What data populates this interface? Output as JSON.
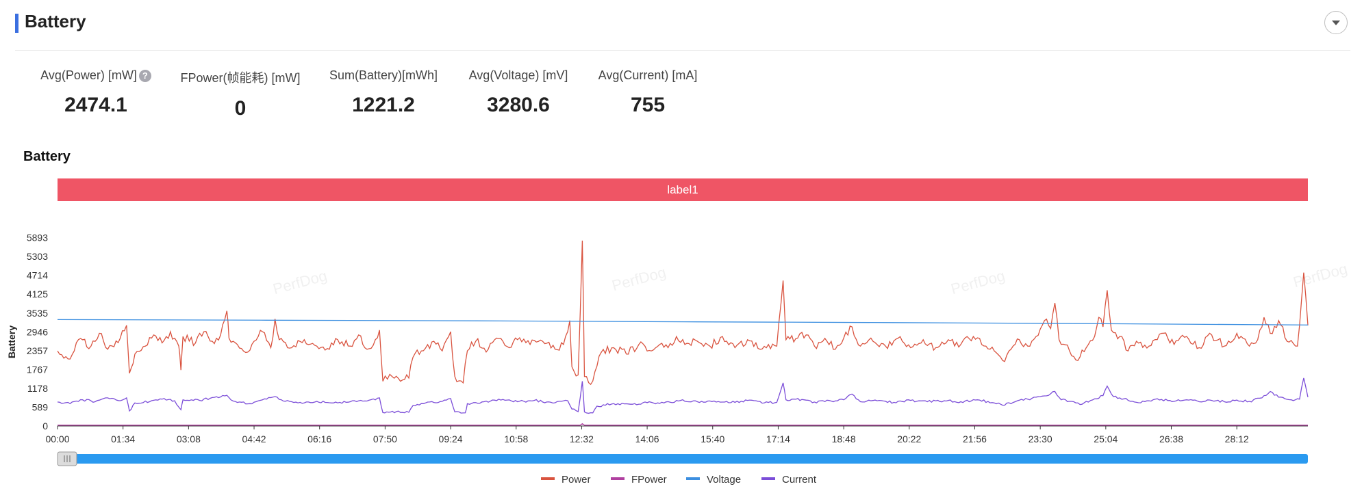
{
  "header": {
    "title": "Battery"
  },
  "stats": [
    {
      "label": "Avg(Power) [mW]",
      "value": "2474.1",
      "help": "?"
    },
    {
      "label": "FPower(帧能耗) [mW]",
      "value": "0"
    },
    {
      "label": "Sum(Battery)[mWh]",
      "value": "1221.2"
    },
    {
      "label": "Avg(Voltage) [mV]",
      "value": "3280.6"
    },
    {
      "label": "Avg(Current) [mA]",
      "value": "755"
    }
  ],
  "watermark": "PerfDog",
  "chart_data": {
    "type": "line",
    "title": "Battery",
    "ylabel": "Battery",
    "label_band": "label1",
    "ylim": [
      0,
      6483
    ],
    "y_ticks": [
      0,
      589,
      1178,
      1767,
      2357,
      2946,
      3535,
      4125,
      4714,
      5303,
      5893
    ],
    "x_ticks": [
      "00:00",
      "01:34",
      "03:08",
      "04:42",
      "06:16",
      "07:50",
      "09:24",
      "10:58",
      "12:32",
      "14:06",
      "15:40",
      "17:14",
      "18:48",
      "20:22",
      "21:56",
      "23:30",
      "25:04",
      "26:38",
      "28:12"
    ],
    "x_minutes_end": 29.9,
    "grid": false,
    "legend_position": "bottom",
    "series": [
      {
        "name": "Power",
        "color": "#d9533f",
        "width": 1.3,
        "points": [
          [
            0,
            2350
          ],
          [
            0.25,
            2100
          ],
          [
            0.5,
            2700
          ],
          [
            0.8,
            2500
          ],
          [
            1.0,
            2900
          ],
          [
            1.2,
            2400
          ],
          [
            1.5,
            2750
          ],
          [
            1.65,
            3150
          ],
          [
            1.72,
            1650
          ],
          [
            1.85,
            2250
          ],
          [
            2.1,
            2500
          ],
          [
            2.3,
            2850
          ],
          [
            2.5,
            2600
          ],
          [
            2.7,
            2950
          ],
          [
            2.9,
            2500
          ],
          [
            2.95,
            1750
          ],
          [
            3.0,
            2800
          ],
          [
            3.3,
            2600
          ],
          [
            3.5,
            2950
          ],
          [
            3.7,
            2650
          ],
          [
            3.9,
            2850
          ],
          [
            4.05,
            3600
          ],
          [
            4.1,
            2750
          ],
          [
            4.3,
            2550
          ],
          [
            4.5,
            2300
          ],
          [
            4.7,
            2650
          ],
          [
            4.9,
            2950
          ],
          [
            5.1,
            2450
          ],
          [
            5.2,
            3350
          ],
          [
            5.3,
            2700
          ],
          [
            5.6,
            2450
          ],
          [
            5.9,
            2700
          ],
          [
            6.2,
            2500
          ],
          [
            6.5,
            2400
          ],
          [
            6.7,
            2700
          ],
          [
            7.0,
            2500
          ],
          [
            7.2,
            2850
          ],
          [
            7.4,
            2400
          ],
          [
            7.6,
            2700
          ],
          [
            7.7,
            3000
          ],
          [
            7.78,
            1400
          ],
          [
            8.0,
            1550
          ],
          [
            8.2,
            1400
          ],
          [
            8.4,
            1500
          ],
          [
            8.5,
            2150
          ],
          [
            8.7,
            2350
          ],
          [
            9.0,
            2650
          ],
          [
            9.2,
            2350
          ],
          [
            9.4,
            2950
          ],
          [
            9.5,
            1550
          ],
          [
            9.7,
            1350
          ],
          [
            9.8,
            2350
          ],
          [
            10.0,
            2650
          ],
          [
            10.3,
            2400
          ],
          [
            10.5,
            2750
          ],
          [
            10.8,
            2450
          ],
          [
            11.0,
            2700
          ],
          [
            11.3,
            2550
          ],
          [
            11.6,
            2650
          ],
          [
            11.9,
            2400
          ],
          [
            12.1,
            2550
          ],
          [
            12.25,
            3300
          ],
          [
            12.3,
            1850
          ],
          [
            12.45,
            1600
          ],
          [
            12.55,
            5800
          ],
          [
            12.6,
            1550
          ],
          [
            12.75,
            1300
          ],
          [
            12.85,
            1700
          ],
          [
            13.0,
            2300
          ],
          [
            13.3,
            2450
          ],
          [
            13.6,
            2250
          ],
          [
            13.9,
            2550
          ],
          [
            14.2,
            2350
          ],
          [
            14.4,
            2550
          ],
          [
            14.6,
            2450
          ],
          [
            14.8,
            2800
          ],
          [
            15.0,
            2550
          ],
          [
            15.3,
            2650
          ],
          [
            15.6,
            2500
          ],
          [
            15.9,
            2800
          ],
          [
            16.2,
            2450
          ],
          [
            16.5,
            2700
          ],
          [
            16.8,
            2400
          ],
          [
            17.0,
            2550
          ],
          [
            17.2,
            2500
          ],
          [
            17.35,
            4550
          ],
          [
            17.42,
            2700
          ],
          [
            17.7,
            2750
          ],
          [
            17.9,
            2850
          ],
          [
            18.1,
            2500
          ],
          [
            18.4,
            2650
          ],
          [
            18.6,
            2400
          ],
          [
            18.8,
            2750
          ],
          [
            19.0,
            3100
          ],
          [
            19.2,
            2500
          ],
          [
            19.5,
            2650
          ],
          [
            19.8,
            2500
          ],
          [
            20.1,
            2750
          ],
          [
            20.4,
            2450
          ],
          [
            20.7,
            2700
          ],
          [
            21.0,
            2450
          ],
          [
            21.3,
            2700
          ],
          [
            21.6,
            2550
          ],
          [
            21.9,
            2800
          ],
          [
            22.2,
            2500
          ],
          [
            22.4,
            2350
          ],
          [
            22.6,
            2050
          ],
          [
            22.8,
            2400
          ],
          [
            23.0,
            2700
          ],
          [
            23.2,
            2500
          ],
          [
            23.4,
            2800
          ],
          [
            23.6,
            3300
          ],
          [
            23.75,
            3050
          ],
          [
            23.85,
            3850
          ],
          [
            23.95,
            2700
          ],
          [
            24.2,
            2350
          ],
          [
            24.4,
            2050
          ],
          [
            24.6,
            2450
          ],
          [
            24.8,
            2800
          ],
          [
            24.9,
            3400
          ],
          [
            25.0,
            3100
          ],
          [
            25.1,
            4250
          ],
          [
            25.2,
            3000
          ],
          [
            25.4,
            2800
          ],
          [
            25.6,
            2350
          ],
          [
            25.8,
            2650
          ],
          [
            26.1,
            2500
          ],
          [
            26.4,
            2900
          ],
          [
            26.7,
            2550
          ],
          [
            27.0,
            2800
          ],
          [
            27.3,
            2450
          ],
          [
            27.6,
            2850
          ],
          [
            27.9,
            2500
          ],
          [
            28.2,
            2900
          ],
          [
            28.5,
            2500
          ],
          [
            28.7,
            2700
          ],
          [
            28.85,
            3400
          ],
          [
            29.0,
            2900
          ],
          [
            29.2,
            3300
          ],
          [
            29.4,
            2650
          ],
          [
            29.65,
            2500
          ],
          [
            29.8,
            4800
          ],
          [
            29.9,
            3150
          ]
        ]
      },
      {
        "name": "FPower",
        "color": "#b040a0",
        "width": 1.3,
        "points": [
          [
            0,
            25
          ],
          [
            12.5,
            25
          ],
          [
            12.55,
            70
          ],
          [
            12.6,
            25
          ],
          [
            29.9,
            25
          ]
        ]
      },
      {
        "name": "Voltage",
        "color": "#3c8fe0",
        "width": 1.3,
        "points": [
          [
            0,
            3330
          ],
          [
            5,
            3310
          ],
          [
            10,
            3290
          ],
          [
            15,
            3260
          ],
          [
            20,
            3235
          ],
          [
            25,
            3200
          ],
          [
            29.9,
            3160
          ]
        ]
      },
      {
        "name": "Current",
        "color": "#7b4dd8",
        "width": 1.3,
        "points": [
          [
            0,
            750
          ],
          [
            0.3,
            700
          ],
          [
            0.6,
            820
          ],
          [
            0.9,
            760
          ],
          [
            1.2,
            880
          ],
          [
            1.5,
            790
          ],
          [
            1.65,
            880
          ],
          [
            1.72,
            470
          ],
          [
            1.85,
            720
          ],
          [
            2.2,
            760
          ],
          [
            2.5,
            840
          ],
          [
            2.8,
            790
          ],
          [
            2.95,
            510
          ],
          [
            3.0,
            820
          ],
          [
            3.4,
            800
          ],
          [
            3.7,
            890
          ],
          [
            4.05,
            960
          ],
          [
            4.2,
            780
          ],
          [
            4.6,
            700
          ],
          [
            4.9,
            820
          ],
          [
            5.2,
            920
          ],
          [
            5.4,
            780
          ],
          [
            5.8,
            740
          ],
          [
            6.2,
            770
          ],
          [
            6.6,
            720
          ],
          [
            7.0,
            760
          ],
          [
            7.4,
            780
          ],
          [
            7.7,
            880
          ],
          [
            7.78,
            420
          ],
          [
            8.1,
            450
          ],
          [
            8.4,
            430
          ],
          [
            8.5,
            640
          ],
          [
            8.8,
            720
          ],
          [
            9.2,
            770
          ],
          [
            9.4,
            860
          ],
          [
            9.5,
            440
          ],
          [
            9.75,
            410
          ],
          [
            9.8,
            700
          ],
          [
            10.2,
            760
          ],
          [
            10.6,
            810
          ],
          [
            11.0,
            760
          ],
          [
            11.4,
            800
          ],
          [
            11.8,
            740
          ],
          [
            12.2,
            790
          ],
          [
            12.3,
            530
          ],
          [
            12.45,
            450
          ],
          [
            12.55,
            1400
          ],
          [
            12.6,
            440
          ],
          [
            12.8,
            410
          ],
          [
            12.9,
            620
          ],
          [
            13.3,
            700
          ],
          [
            13.7,
            680
          ],
          [
            14.1,
            730
          ],
          [
            14.5,
            720
          ],
          [
            14.9,
            800
          ],
          [
            15.3,
            760
          ],
          [
            15.7,
            780
          ],
          [
            16.1,
            730
          ],
          [
            16.5,
            800
          ],
          [
            16.9,
            720
          ],
          [
            17.2,
            740
          ],
          [
            17.35,
            1350
          ],
          [
            17.42,
            820
          ],
          [
            17.8,
            830
          ],
          [
            18.1,
            750
          ],
          [
            18.5,
            780
          ],
          [
            18.8,
            820
          ],
          [
            19.0,
            1000
          ],
          [
            19.2,
            760
          ],
          [
            19.6,
            790
          ],
          [
            20.0,
            740
          ],
          [
            20.4,
            800
          ],
          [
            20.8,
            760
          ],
          [
            21.2,
            790
          ],
          [
            21.6,
            760
          ],
          [
            22.0,
            820
          ],
          [
            22.4,
            720
          ],
          [
            22.6,
            650
          ],
          [
            22.9,
            760
          ],
          [
            23.2,
            840
          ],
          [
            23.5,
            920
          ],
          [
            23.7,
            960
          ],
          [
            23.85,
            1080
          ],
          [
            24.0,
            820
          ],
          [
            24.3,
            760
          ],
          [
            24.5,
            680
          ],
          [
            24.8,
            850
          ],
          [
            25.0,
            950
          ],
          [
            25.1,
            1250
          ],
          [
            25.25,
            920
          ],
          [
            25.5,
            850
          ],
          [
            25.8,
            740
          ],
          [
            26.1,
            790
          ],
          [
            26.4,
            830
          ],
          [
            26.7,
            770
          ],
          [
            27.0,
            820
          ],
          [
            27.3,
            760
          ],
          [
            27.6,
            800
          ],
          [
            27.9,
            760
          ],
          [
            28.2,
            810
          ],
          [
            28.5,
            770
          ],
          [
            28.8,
            880
          ],
          [
            29.0,
            1080
          ],
          [
            29.2,
            900
          ],
          [
            29.5,
            820
          ],
          [
            29.7,
            840
          ],
          [
            29.8,
            1500
          ],
          [
            29.9,
            900
          ]
        ]
      }
    ]
  }
}
